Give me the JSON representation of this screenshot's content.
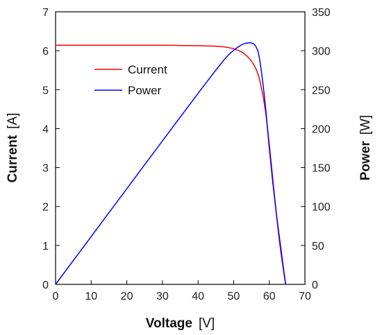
{
  "chart_data": {
    "type": "line",
    "xlabel": {
      "name": "Voltage",
      "unit": "[V]"
    },
    "ylabel_left": {
      "name": "Current",
      "unit": "[A]"
    },
    "ylabel_right": {
      "name": "Power",
      "unit": "[W]"
    },
    "xlim": [
      0,
      70
    ],
    "ylim_left": [
      0,
      7
    ],
    "ylim_right": [
      0,
      350
    ],
    "xticks": [
      0,
      10,
      20,
      30,
      40,
      50,
      60,
      70
    ],
    "yticks_left": [
      0,
      1,
      2,
      3,
      4,
      5,
      6,
      7
    ],
    "yticks_right": [
      0,
      50,
      100,
      150,
      200,
      250,
      300,
      350
    ],
    "grid": false,
    "legend_position": "upper-left inside",
    "series": [
      {
        "name": "Current",
        "axis": "left",
        "color": "#ff0000",
        "x": [
          0,
          10,
          20,
          30,
          40,
          44,
          46,
          48,
          50,
          52,
          53,
          54,
          55,
          56,
          57,
          58,
          59,
          60,
          61,
          62,
          63,
          64,
          64.6
        ],
        "y": [
          6.14,
          6.14,
          6.14,
          6.14,
          6.13,
          6.12,
          6.11,
          6.09,
          6.05,
          5.98,
          5.92,
          5.84,
          5.73,
          5.58,
          5.35,
          4.95,
          4.4,
          3.6,
          2.7,
          1.8,
          1.0,
          0.35,
          0
        ]
      },
      {
        "name": "Power",
        "axis": "right",
        "color": "#0000ff",
        "x": [
          0,
          10,
          20,
          30,
          40,
          45,
          48,
          50,
          52,
          53,
          54,
          55,
          56,
          57,
          58,
          59,
          60,
          61,
          62,
          63,
          64,
          64.6
        ],
        "y": [
          0,
          61.4,
          122.8,
          184.2,
          245.2,
          275,
          292,
          300.5,
          307,
          309,
          310,
          310,
          307,
          296,
          266,
          225,
          175,
          130,
          90,
          55,
          20,
          0
        ]
      }
    ]
  }
}
